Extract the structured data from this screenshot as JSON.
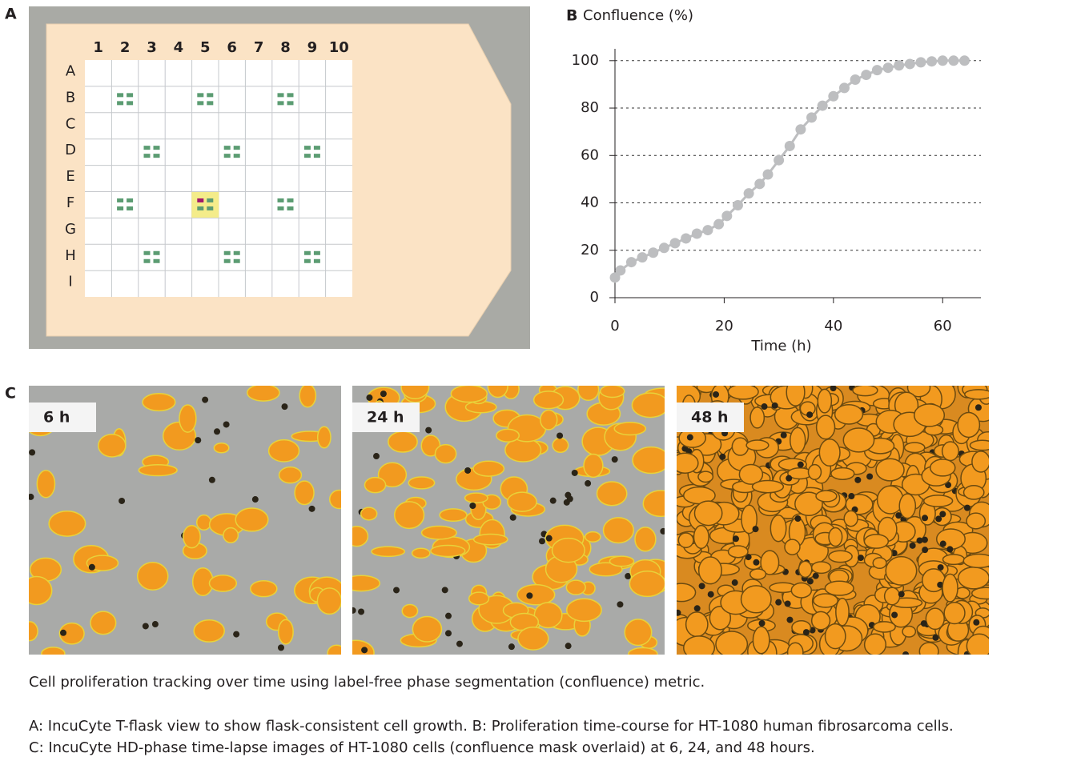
{
  "panel_a": {
    "label": "A",
    "columns": [
      "1",
      "2",
      "3",
      "4",
      "5",
      "6",
      "7",
      "8",
      "9",
      "10"
    ],
    "rows": [
      "A",
      "B",
      "C",
      "D",
      "E",
      "F",
      "G",
      "H",
      "I"
    ]
  },
  "chart_data": {
    "type": "line",
    "panel_label": "B",
    "title": "Confluence (%)",
    "x_label": "Time (h)",
    "x": [
      0,
      1,
      3,
      5,
      7,
      9,
      11,
      13,
      15,
      17,
      19,
      20.5,
      22.5,
      24.5,
      26.5,
      28,
      30,
      32,
      34,
      36,
      38,
      40,
      42,
      44,
      46,
      48,
      50,
      52,
      54,
      56,
      58,
      60,
      62,
      64
    ],
    "series": [
      {
        "color": "#bdbec0",
        "values": [
          8.5,
          11.5,
          15,
          17,
          19,
          21,
          23,
          25,
          27,
          28.5,
          31,
          34.5,
          39,
          44,
          48,
          52,
          58,
          64,
          71,
          76,
          81,
          85,
          88.5,
          92,
          94,
          96,
          97,
          98,
          98.6,
          99.3,
          99.7,
          100,
          100,
          100
        ]
      }
    ],
    "xlim": [
      0,
      67
    ],
    "ylim": [
      0,
      105
    ],
    "xticks": [
      0,
      20,
      40,
      60
    ],
    "yticks": [
      0,
      20,
      40,
      60,
      80,
      100
    ],
    "grid": true
  },
  "panel_c": {
    "label": "C",
    "images": [
      {
        "label": "6 h"
      },
      {
        "label": "24 h"
      },
      {
        "label": "48 h"
      }
    ]
  },
  "caption": {
    "title": "Cell proliferation tracking over time using label-free phase segmentation (confluence) metric.",
    "lines": [
      "A: IncuCyte T-flask view to show flask-consistent cell growth. B: Proliferation time-course for HT-1080 human fibrosarcoma cells.",
      "C: IncuCyte HD-phase time-lapse images of HT-1080 cells (confluence mask overlaid) at 6, 24, and 48 hours."
    ]
  }
}
